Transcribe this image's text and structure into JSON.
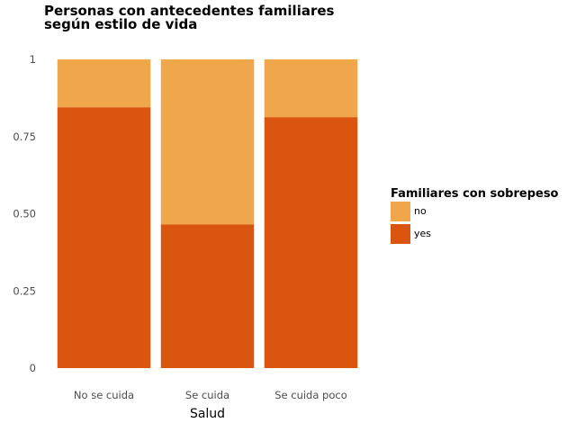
{
  "chart_data": {
    "type": "bar",
    "stacked": true,
    "title_lines": [
      "Personas con antecedentes familiares",
      "según estilo de vida"
    ],
    "xlabel": "Salud",
    "ylabel": "",
    "ylim": [
      0,
      1
    ],
    "yticks": [
      {
        "value": 0,
        "label": "0"
      },
      {
        "value": 0.25,
        "label": "0.25"
      },
      {
        "value": 0.5,
        "label": "0.50"
      },
      {
        "value": 0.75,
        "label": "0.75"
      },
      {
        "value": 1,
        "label": "1"
      }
    ],
    "categories": [
      "No se cuida",
      "Se cuida",
      "Se cuida poco"
    ],
    "series": [
      {
        "name": "yes",
        "color": "#d95510",
        "values": [
          0.845,
          0.465,
          0.813
        ]
      },
      {
        "name": "no",
        "color": "#f0a74b",
        "values": [
          0.155,
          0.535,
          0.187
        ]
      }
    ],
    "legend": {
      "title": "Familiares con sobrepeso",
      "placement": "right",
      "entries": [
        {
          "label": "no",
          "color": "#f0a74b"
        },
        {
          "label": "yes",
          "color": "#d95510"
        }
      ]
    },
    "grid": false
  }
}
